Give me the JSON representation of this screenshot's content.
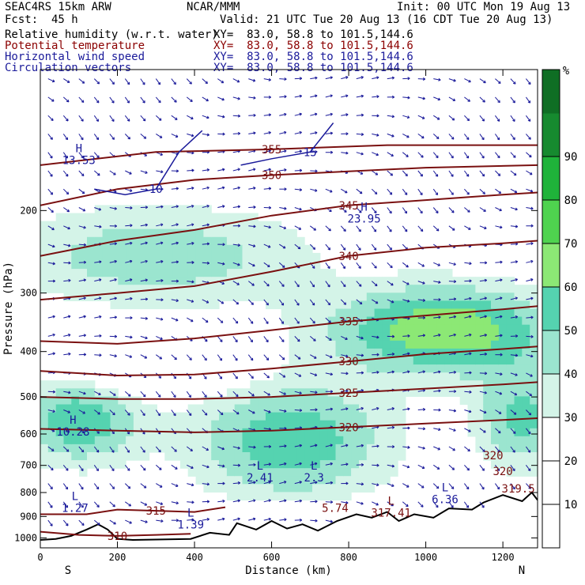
{
  "header": {
    "model": "SEAC4RS 15km ARW",
    "org": "NCAR/MMM",
    "init": "Init: 00 UTC Mon 19 Aug 13",
    "fcst": "Fcst:  45 h",
    "valid": "Valid: 21 UTC Tue 20 Aug 13 (16 CDT Tue 20 Aug 13)"
  },
  "fields": [
    {
      "name": "Relative humidity (w.r.t. water)",
      "xy": "XY=  83.0, 58.8 to 101.5,144.6",
      "color": "#000000"
    },
    {
      "name": "Potential temperature",
      "xy": "XY=  83.0, 58.8 to 101.5,144.6",
      "color": "#8b0000"
    },
    {
      "name": "Horizontal wind speed",
      "xy": "XY=  83.0, 58.8 to 101.5,144.6",
      "color": "#1a1a9a"
    },
    {
      "name": "Circulation vectors",
      "xy": "XY=  83.0, 58.8 to 101.5,144.6",
      "color": "#1a1a9a"
    }
  ],
  "chart_data": {
    "type": "heatmap",
    "xlabel": "Distance (km)",
    "ylabel": "Pressure (hPa)",
    "xlim": [
      0,
      1290
    ],
    "ylim": [
      1050,
      100
    ],
    "y_scale": "log",
    "x_ticks": [
      "0",
      "200",
      "400",
      "600",
      "800",
      "1000",
      "1200"
    ],
    "y_ticks": [
      "200",
      "300",
      "400",
      "500",
      "600",
      "700",
      "800",
      "900",
      "1000"
    ],
    "x_end_labels": {
      "left": "S",
      "right": "N"
    },
    "colorbar": {
      "unit": "%",
      "ticks": [
        "10",
        "20",
        "30",
        "40",
        "50",
        "60",
        "70",
        "80",
        "90"
      ],
      "colors": [
        "#ffffff",
        "#ffffff",
        "#ffffff",
        "#d4f4e8",
        "#9be5cf",
        "#55d3b0",
        "#8ce875",
        "#4fd34f",
        "#1fb33a",
        "#168a2f",
        "#0f6e24"
      ]
    },
    "theta_contours": [
      {
        "label": "310",
        "level": 310,
        "points": [
          [
            0,
            970
          ],
          [
            100,
            985
          ],
          [
            200,
            990
          ],
          [
            300,
            985
          ],
          [
            390,
            980
          ]
        ]
      },
      {
        "label": "315",
        "level": 315,
        "points": [
          [
            0,
            890
          ],
          [
            120,
            890
          ],
          [
            200,
            870
          ],
          [
            300,
            875
          ],
          [
            400,
            880
          ],
          [
            480,
            860
          ]
        ]
      },
      {
        "label": "320",
        "level": 320,
        "points": [
          [
            0,
            585
          ],
          [
            200,
            590
          ],
          [
            400,
            595
          ],
          [
            600,
            590
          ],
          [
            800,
            580
          ],
          [
            1000,
            570
          ],
          [
            1200,
            560
          ],
          [
            1290,
            555
          ]
        ]
      },
      {
        "label": "325",
        "level": 325,
        "points": [
          [
            0,
            500
          ],
          [
            200,
            505
          ],
          [
            400,
            505
          ],
          [
            600,
            500
          ],
          [
            800,
            490
          ],
          [
            1000,
            480
          ],
          [
            1200,
            470
          ],
          [
            1290,
            465
          ]
        ]
      },
      {
        "label": "330",
        "level": 330,
        "points": [
          [
            0,
            440
          ],
          [
            200,
            450
          ],
          [
            400,
            448
          ],
          [
            600,
            435
          ],
          [
            800,
            420
          ],
          [
            1000,
            405
          ],
          [
            1200,
            395
          ],
          [
            1290,
            390
          ]
        ]
      },
      {
        "label": "335",
        "level": 335,
        "points": [
          [
            0,
            380
          ],
          [
            200,
            385
          ],
          [
            400,
            375
          ],
          [
            600,
            360
          ],
          [
            800,
            345
          ],
          [
            1000,
            335
          ],
          [
            1200,
            325
          ],
          [
            1290,
            320
          ]
        ]
      },
      {
        "label": "340",
        "level": 340,
        "points": [
          [
            0,
            310
          ],
          [
            200,
            300
          ],
          [
            400,
            290
          ],
          [
            600,
            270
          ],
          [
            800,
            250
          ],
          [
            1000,
            240
          ],
          [
            1200,
            235
          ],
          [
            1290,
            232
          ]
        ]
      },
      {
        "label": "345",
        "level": 345,
        "points": [
          [
            0,
            250
          ],
          [
            200,
            232
          ],
          [
            400,
            220
          ],
          [
            600,
            205
          ],
          [
            800,
            195
          ],
          [
            1000,
            190
          ],
          [
            1200,
            185
          ],
          [
            1290,
            183
          ]
        ]
      },
      {
        "label": "350",
        "level": 350,
        "points": [
          [
            0,
            195
          ],
          [
            200,
            180
          ],
          [
            400,
            172
          ],
          [
            600,
            168
          ],
          [
            800,
            165
          ],
          [
            1000,
            162
          ],
          [
            1290,
            160
          ]
        ]
      },
      {
        "label": "355",
        "level": 355,
        "points": [
          [
            0,
            160
          ],
          [
            300,
            150
          ],
          [
            600,
            148
          ],
          [
            900,
            145
          ],
          [
            1290,
            145
          ]
        ]
      }
    ],
    "wind_contours": [
      {
        "label": "10",
        "points": [
          [
            140,
            180
          ],
          [
            220,
            185
          ],
          [
            300,
            180
          ],
          [
            360,
            150
          ],
          [
            420,
            135
          ]
        ]
      },
      {
        "label": "15",
        "points": [
          [
            520,
            160
          ],
          [
            600,
            155
          ],
          [
            700,
            150
          ],
          [
            760,
            130
          ]
        ]
      }
    ],
    "extrema": [
      {
        "kind": "H",
        "x": 100,
        "p": 150,
        "value": "13.53"
      },
      {
        "kind": "H",
        "x": 85,
        "p": 570,
        "value": "10.28"
      },
      {
        "kind": "H",
        "x": 840,
        "p": 200,
        "value": "23.95"
      },
      {
        "kind": "L",
        "x": 570,
        "p": 715,
        "value": "2.41"
      },
      {
        "kind": "L",
        "x": 710,
        "p": 715,
        "value": "2.3"
      },
      {
        "kind": "L",
        "x": 90,
        "p": 830,
        "value": "1.27"
      },
      {
        "kind": "L",
        "x": 390,
        "p": 900,
        "value": "1.39"
      },
      {
        "kind": "L",
        "x": 910,
        "p": 850,
        "value": "317.41"
      },
      {
        "kind": "L",
        "x": 1050,
        "p": 795,
        "value": "6.36"
      }
    ],
    "theta_extra_labels": [
      {
        "label": "320",
        "x": 1175,
        "p": 680
      },
      {
        "label": "320",
        "x": 1200,
        "p": 735
      },
      {
        "label": "319.5",
        "x": 1240,
        "p": 800
      },
      {
        "label": "5.74",
        "x": 765,
        "p": 880
      }
    ],
    "terrain": [
      [
        0,
        1010
      ],
      [
        40,
        1005
      ],
      [
        80,
        990
      ],
      [
        120,
        960
      ],
      [
        150,
        935
      ],
      [
        175,
        960
      ],
      [
        200,
        1005
      ],
      [
        240,
        1010
      ],
      [
        300,
        1008
      ],
      [
        390,
        1005
      ],
      [
        440,
        975
      ],
      [
        490,
        985
      ],
      [
        510,
        930
      ],
      [
        560,
        960
      ],
      [
        600,
        920
      ],
      [
        640,
        955
      ],
      [
        680,
        935
      ],
      [
        720,
        965
      ],
      [
        770,
        920
      ],
      [
        820,
        890
      ],
      [
        860,
        905
      ],
      [
        900,
        880
      ],
      [
        930,
        920
      ],
      [
        970,
        890
      ],
      [
        1020,
        905
      ],
      [
        1060,
        865
      ],
      [
        1120,
        870
      ],
      [
        1150,
        840
      ],
      [
        1200,
        810
      ],
      [
        1250,
        835
      ],
      [
        1275,
        800
      ],
      [
        1290,
        830
      ]
    ]
  }
}
